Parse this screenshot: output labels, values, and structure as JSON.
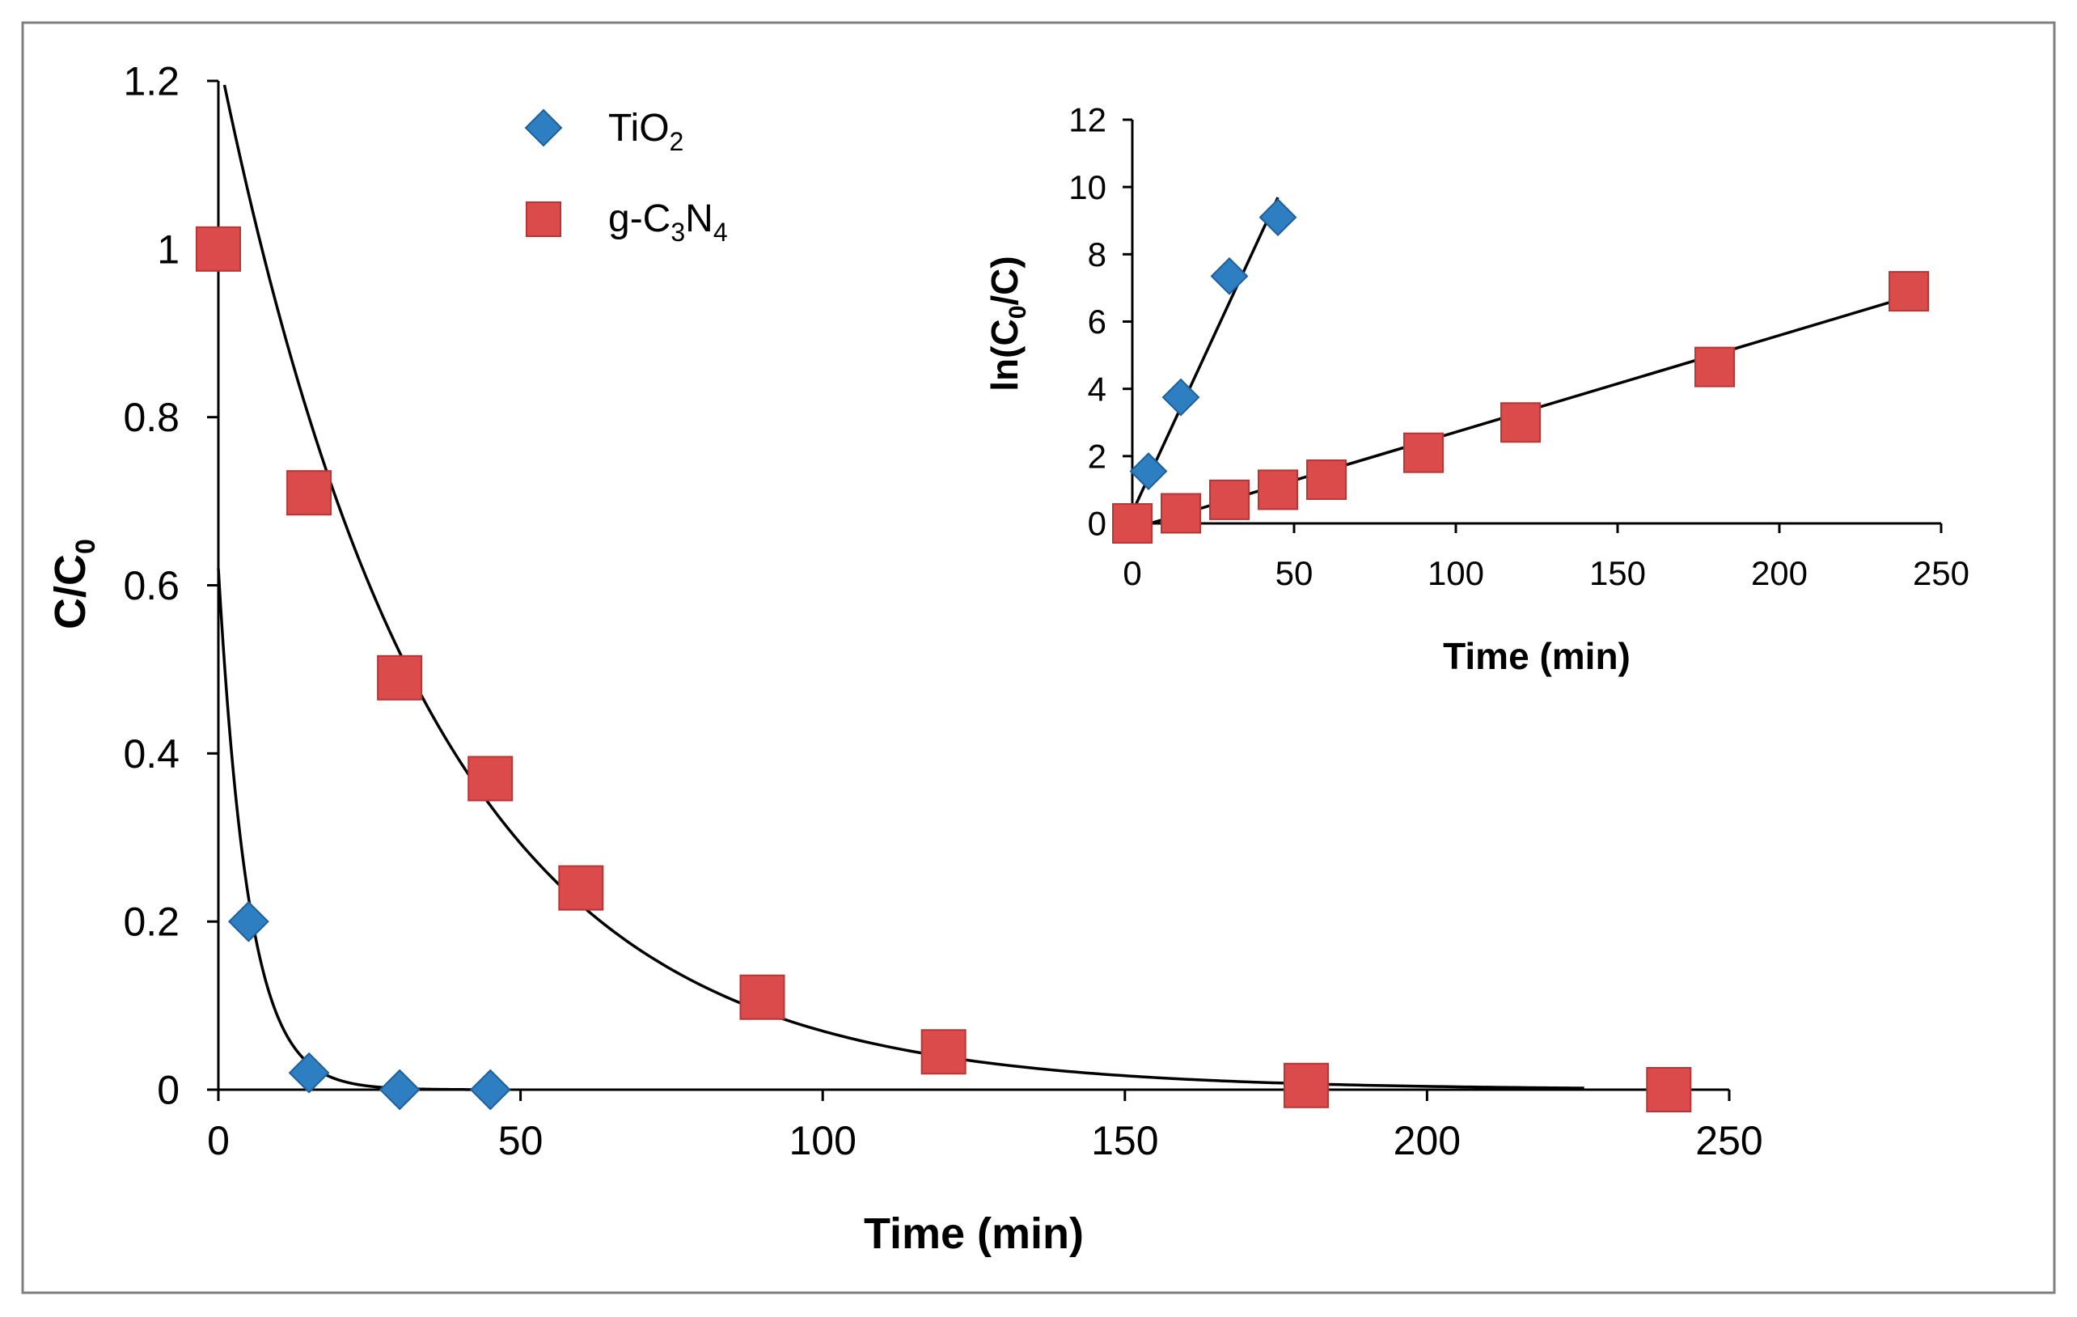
{
  "colors": {
    "tio2": "#2E7FC2",
    "tio2_stroke": "#1F5F99",
    "gc3n4": "#DB4B4B",
    "gc3n4_stroke": "#B83535",
    "line": "#000000",
    "frame": "#7F7F7F"
  },
  "chart_data": [
    {
      "id": "main",
      "type": "scatter",
      "xlabel": "Time (min)",
      "ylabel": {
        "main": "C/C",
        "sub": "0"
      },
      "xlim": [
        0,
        250
      ],
      "ylim": [
        0,
        1.2
      ],
      "xticks": [
        0,
        50,
        100,
        150,
        200,
        250
      ],
      "yticks": [
        0,
        0.2,
        0.4,
        0.6,
        0.8,
        1,
        1.2
      ],
      "xtick_labels": [
        "0",
        "50",
        "100",
        "150",
        "200",
        "250"
      ],
      "ytick_labels": [
        "0",
        "0.2",
        "0.4",
        "0.6",
        "0.8",
        "1",
        "1.2"
      ],
      "grid": false,
      "legend_position": "top-center",
      "series": [
        {
          "name": "TiO2",
          "label": {
            "base": "TiO",
            "sub": "2",
            "tail": ""
          },
          "marker": "diamond",
          "x": [
            5,
            15,
            30,
            45
          ],
          "y": [
            0.2,
            0.02,
            0.0,
            0.0
          ],
          "fit": {
            "type": "exponential",
            "a": 0.62,
            "k": 0.2,
            "x_from": 0,
            "x_to": 45
          }
        },
        {
          "name": "g-C3N4",
          "label": {
            "base": "g-C",
            "sub": "3",
            "mid": "N",
            "sub2": "4"
          },
          "marker": "square",
          "x": [
            0,
            15,
            30,
            45,
            60,
            90,
            120,
            180,
            240
          ],
          "y": [
            1.0,
            0.71,
            0.49,
            0.37,
            0.24,
            0.11,
            0.045,
            0.005,
            0.0
          ],
          "fit": {
            "type": "exponential",
            "a": 1.23,
            "k": 0.0287,
            "x_from": 1,
            "x_to": 226
          }
        }
      ]
    },
    {
      "id": "inset",
      "type": "scatter",
      "xlabel": "Time (min)",
      "ylabel": {
        "pre": "ln(C",
        "sub": "0",
        "post": "/C)"
      },
      "xlim": [
        0,
        250
      ],
      "ylim": [
        0,
        12
      ],
      "xticks": [
        0,
        50,
        100,
        150,
        200,
        250
      ],
      "yticks": [
        0,
        2,
        4,
        6,
        8,
        10,
        12
      ],
      "xtick_labels": [
        "0",
        "50",
        "100",
        "150",
        "200",
        "250"
      ],
      "ytick_labels": [
        "0",
        "2",
        "4",
        "6",
        "8",
        "10",
        "12"
      ],
      "grid": false,
      "series": [
        {
          "name": "TiO2",
          "marker": "diamond",
          "x": [
            5,
            15,
            30,
            45
          ],
          "y": [
            1.55,
            3.75,
            7.35,
            9.1
          ],
          "fit": {
            "type": "linear",
            "slope": 0.208,
            "intercept": 0.33,
            "x_from": 0,
            "x_to": 45
          }
        },
        {
          "name": "g-C3N4",
          "marker": "square",
          "x": [
            0,
            15,
            30,
            45,
            60,
            90,
            120,
            180,
            240
          ],
          "y": [
            0.0,
            0.3,
            0.7,
            1.0,
            1.3,
            2.1,
            3.0,
            4.65,
            6.9
          ],
          "fit": {
            "type": "linear",
            "slope": 0.02875,
            "intercept": -0.16,
            "x_from": 6,
            "x_to": 240
          }
        }
      ]
    }
  ]
}
